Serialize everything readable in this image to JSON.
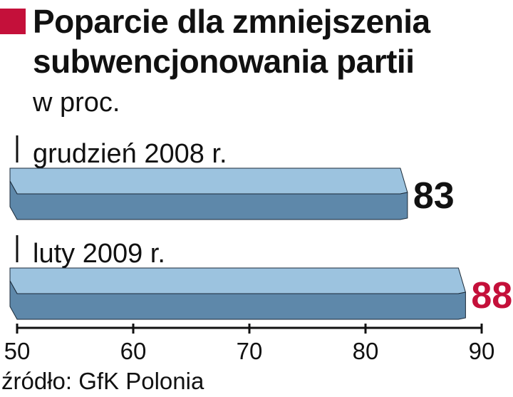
{
  "header": {
    "title": "Poparcie dla zmniejszenia subwencjonowania partii",
    "subtitle": "w proc.",
    "accent_color": "#c4103a"
  },
  "chart_data": {
    "type": "bar",
    "orientation": "horizontal",
    "categories": [
      "grudzień 2008 r.",
      "luty 2009 r."
    ],
    "values": [
      83,
      88
    ],
    "value_labels": [
      "83",
      "88"
    ],
    "value_label_colors": [
      "#111111",
      "#c4103a"
    ],
    "xlim": [
      50,
      90
    ],
    "xticks": [
      "50",
      "60",
      "70",
      "80",
      "90"
    ],
    "grid": false,
    "bar_colors": {
      "top": "#9cc3df",
      "bottom": "#5e88aa"
    }
  },
  "source": "źródło: GfK Polonia"
}
